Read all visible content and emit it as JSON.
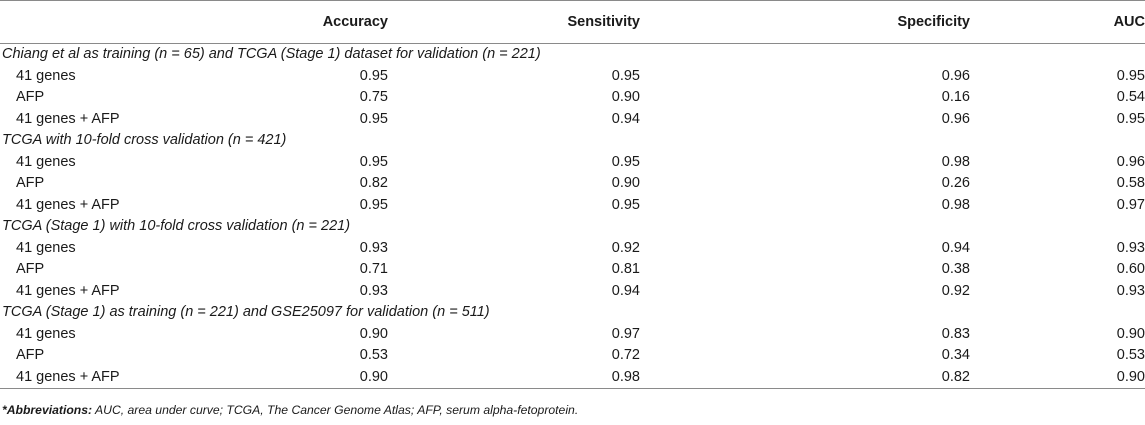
{
  "table": {
    "headers": [
      "",
      "Accuracy",
      "Sensitivity",
      "Specificity",
      "AUC"
    ],
    "sections": [
      {
        "title": "Chiang et al as training (n = 65) and TCGA (Stage 1) dataset for validation (n = 221)",
        "rows": [
          {
            "label": "41 genes",
            "accuracy": "0.95",
            "sensitivity": "0.95",
            "specificity": "0.96",
            "auc": "0.95"
          },
          {
            "label": "AFP",
            "accuracy": "0.75",
            "sensitivity": "0.90",
            "specificity": "0.16",
            "auc": "0.54"
          },
          {
            "label": "41 genes + AFP",
            "accuracy": "0.95",
            "sensitivity": "0.94",
            "specificity": "0.96",
            "auc": "0.95"
          }
        ]
      },
      {
        "title": "TCGA with 10-fold cross validation (n = 421)",
        "rows": [
          {
            "label": "41 genes",
            "accuracy": "0.95",
            "sensitivity": "0.95",
            "specificity": "0.98",
            "auc": "0.96"
          },
          {
            "label": "AFP",
            "accuracy": "0.82",
            "sensitivity": "0.90",
            "specificity": "0.26",
            "auc": "0.58"
          },
          {
            "label": "41 genes + AFP",
            "accuracy": "0.95",
            "sensitivity": "0.95",
            "specificity": "0.98",
            "auc": "0.97"
          }
        ]
      },
      {
        "title": "TCGA (Stage 1) with 10-fold cross validation (n = 221)",
        "rows": [
          {
            "label": "41 genes",
            "accuracy": "0.93",
            "sensitivity": "0.92",
            "specificity": "0.94",
            "auc": "0.93"
          },
          {
            "label": "AFP",
            "accuracy": "0.71",
            "sensitivity": "0.81",
            "specificity": "0.38",
            "auc": "0.60"
          },
          {
            "label": "41 genes + AFP",
            "accuracy": "0.93",
            "sensitivity": "0.94",
            "specificity": "0.92",
            "auc": "0.93"
          }
        ]
      },
      {
        "title": "TCGA (Stage 1) as training (n = 221) and GSE25097 for validation (n = 511)",
        "rows": [
          {
            "label": "41 genes",
            "accuracy": "0.90",
            "sensitivity": "0.97",
            "specificity": "0.83",
            "auc": "0.90"
          },
          {
            "label": "AFP",
            "accuracy": "0.53",
            "sensitivity": "0.72",
            "specificity": "0.34",
            "auc": "0.53"
          },
          {
            "label": "41 genes + AFP",
            "accuracy": "0.90",
            "sensitivity": "0.98",
            "specificity": "0.82",
            "auc": "0.90"
          }
        ]
      }
    ]
  },
  "footnote": {
    "lead": "*Abbreviations:",
    "text": " AUC, area under curve; TCGA, The Cancer Genome Atlas; AFP, serum alpha-fetoprotein."
  }
}
